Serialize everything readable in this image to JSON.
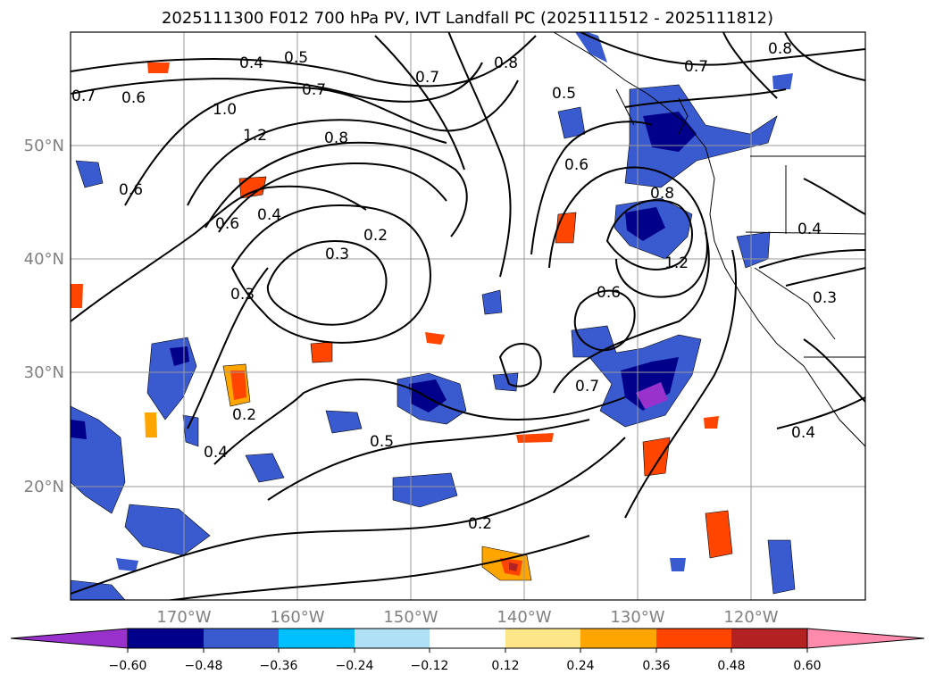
{
  "title": "2025111300 F012 700 hPa PV, IVT Landfall PC (2025111512 - 2025111812)",
  "map": {
    "lon_labels": [
      "170°W",
      "160°W",
      "150°W",
      "140°W",
      "130°W",
      "120°W"
    ],
    "lat_labels": [
      "20°N",
      "30°N",
      "40°N",
      "50°N"
    ],
    "contour_labels": [
      "0.4",
      "0.5",
      "0.7",
      "0.6",
      "1.0",
      "1.2",
      "0.8",
      "0.6",
      "0.4",
      "0.3",
      "0.2",
      "0.3",
      "0.7",
      "0.6",
      "0.7",
      "0.5",
      "0.2",
      "0.5",
      "0.4",
      "0.2",
      "0.8",
      "0.4",
      "0.3",
      "0.8",
      "1.2",
      "0.6",
      "0.7",
      "0.8",
      "0.6",
      "0.7",
      "0.4"
    ]
  },
  "colorbar": {
    "tick_labels": [
      "−0.60",
      "−0.48",
      "−0.36",
      "−0.24",
      "−0.12",
      "0.12",
      "0.24",
      "0.36",
      "0.48",
      "0.60"
    ],
    "colors": [
      "#9932cc",
      "#00008b",
      "#3a5bd0",
      "#00bfff",
      "#b0e0f6",
      "#ffffff",
      "#fde68a",
      "#ffa500",
      "#ff4500",
      "#b22222",
      "#ff8aac"
    ]
  },
  "palette": {
    "line": "#000000",
    "grid": "#999999",
    "tick_label": "#808080"
  }
}
